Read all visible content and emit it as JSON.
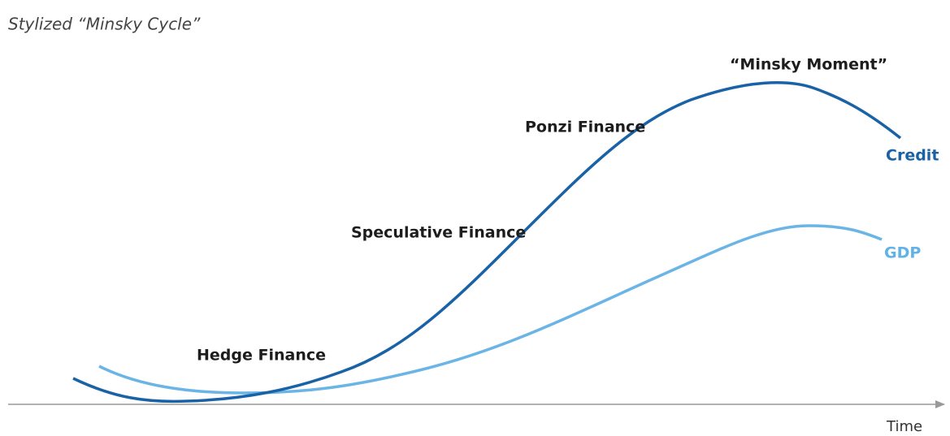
{
  "title": "Stylized “Minsky Cycle”",
  "annotations": {
    "minsky_moment": "“Minsky Moment”",
    "ponzi": "Ponzi Finance",
    "speculative": "Speculative Finance",
    "hedge": "Hedge Finance"
  },
  "series_labels": {
    "credit": "Credit",
    "gdp": "GDP"
  },
  "axis": {
    "x_label": "Time"
  }
}
